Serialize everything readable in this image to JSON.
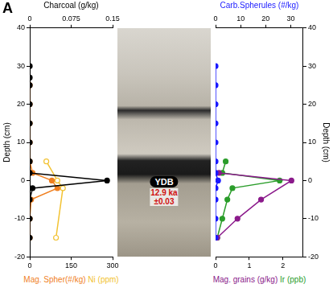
{
  "panel_label": "A",
  "annotation": {
    "text": "YDB",
    "lines": [
      "12.9 ka",
      "±0.03"
    ],
    "depth": 0
  },
  "chart_data": [
    {
      "type": "line",
      "ylabel": "Depth (cm)",
      "ylim": [
        -20,
        40
      ],
      "yticks": [
        -20,
        -10,
        0,
        10,
        20,
        30,
        40
      ],
      "xlim": [
        0,
        300
      ],
      "xticks": [
        0,
        150,
        300
      ],
      "x2lim": [
        0,
        0.15
      ],
      "x2ticks": [
        0,
        0.075,
        0.15
      ],
      "grid": false,
      "series": [
        {
          "name": "Charcoal (g/kg)",
          "axis": "x2",
          "color": "#000000",
          "marker": "circle",
          "x": [
            0,
            0,
            0,
            0,
            0,
            0,
            0,
            0,
            0.14,
            0.005,
            0,
            0,
            0
          ],
          "y": [
            30,
            27,
            25,
            20,
            15,
            10,
            5,
            2,
            0,
            -2,
            -5,
            -10,
            -15
          ]
        },
        {
          "name": "Mag. Spher(#/kg)",
          "axis": "x",
          "color": "#f07f1f",
          "marker": "circle",
          "x": [
            0,
            0,
            0,
            0,
            0,
            10,
            80,
            100,
            5,
            0,
            0
          ],
          "y": [
            25,
            20,
            15,
            10,
            5,
            2,
            0,
            -2,
            -5,
            -10,
            -15
          ]
        },
        {
          "name": "Ni (ppm)",
          "axis": "x",
          "color": "#f2c232",
          "marker": "open circle",
          "x": [
            60,
            100,
            120,
            95
          ],
          "y": [
            5,
            0,
            -2,
            -15
          ]
        }
      ]
    },
    {
      "type": "line",
      "ylabel": "Depth (cm)",
      "ylim": [
        -20,
        40
      ],
      "yticks": [
        -20,
        -10,
        0,
        10,
        20,
        30,
        40
      ],
      "xlim": [
        0,
        2.6
      ],
      "xticks": [
        0,
        1,
        2
      ],
      "x2lim": [
        0,
        35
      ],
      "x2ticks": [
        0,
        10,
        20,
        30
      ],
      "grid": false,
      "series": [
        {
          "name": "Carb.Spherules (#/kg)",
          "axis": "x2",
          "color": "#1a1aff",
          "marker": "circle",
          "x": [
            0,
            0,
            0,
            0,
            0,
            0,
            0,
            1,
            0,
            0,
            0,
            0
          ],
          "y": [
            30,
            25,
            20,
            15,
            10,
            5,
            2,
            0,
            -2,
            -5,
            -10,
            -15
          ]
        },
        {
          "name": "Mag. grains (g/kg)",
          "axis": "x",
          "color": "#8b1a8b",
          "marker": "circle",
          "x": [
            0.1,
            2.25,
            1.35,
            0.65,
            0.05
          ],
          "y": [
            2,
            0,
            -5,
            -10,
            -15
          ]
        },
        {
          "name": "Ir (ppb)",
          "axis": "x",
          "color": "#2a9d2a",
          "marker": "circle",
          "x": [
            0.3,
            0.2,
            1.9,
            0.5,
            0.35,
            0.2,
            0.05
          ],
          "y": [
            5,
            2,
            0,
            -2,
            -5,
            -10,
            -15
          ]
        }
      ]
    }
  ]
}
